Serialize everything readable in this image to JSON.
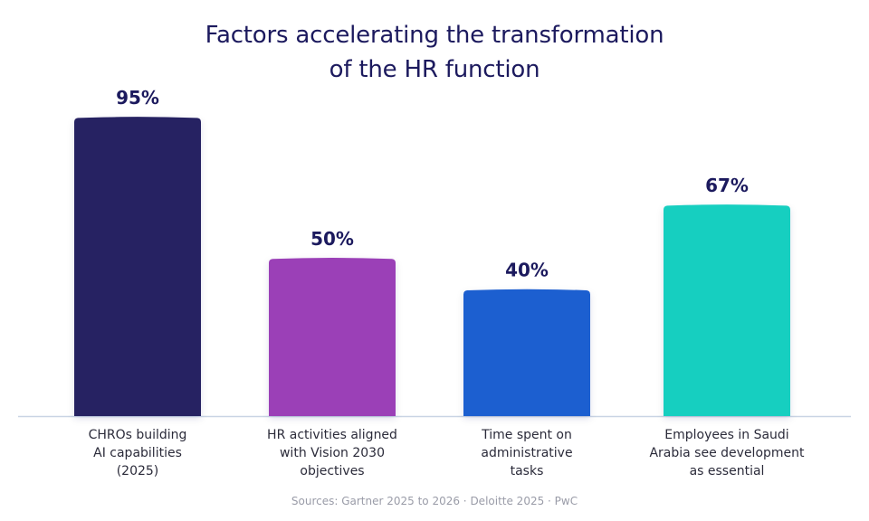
{
  "chart_data": {
    "type": "bar",
    "title_lines": [
      "Factors accelerating the transformation",
      "of the HR function"
    ],
    "categories": [
      [
        "CHROs building",
        "AI capabilities",
        "(2025)"
      ],
      [
        "HR activities aligned",
        "with Vision 2030",
        "objectives"
      ],
      [
        "Time spent on",
        "administrative",
        "tasks"
      ],
      [
        "Employees in Saudi",
        "Arabia see development",
        "as essential"
      ]
    ],
    "values": [
      95,
      50,
      40,
      67
    ],
    "value_labels": [
      "95%",
      "50%",
      "40%",
      "67%"
    ],
    "bar_colors": [
      "#262262",
      "#9b3fb7",
      "#1f5fd0",
      "#19cfc0"
    ],
    "ylim": [
      0,
      100
    ],
    "grid": false,
    "legend": "none"
  },
  "source": "Sources: Gartner 2025 to 2026 · Deloitte 2025 · PwC",
  "colors": {
    "title": "#1c1a5e",
    "value_label": "#1c1a5e",
    "category_label": "#2b2b3a",
    "baseline": "#c9d4e4",
    "source": "#9a9ca8"
  }
}
